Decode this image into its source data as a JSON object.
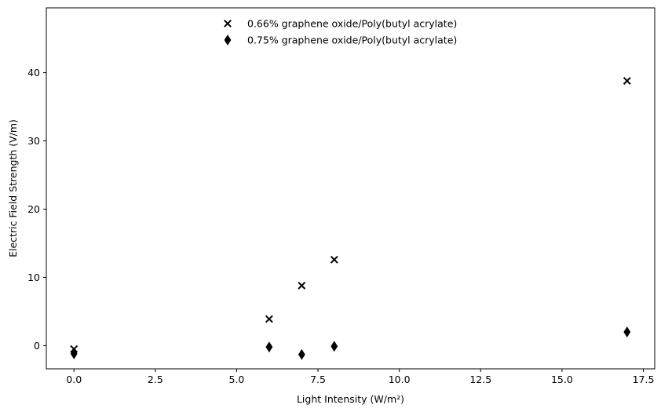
{
  "chart_data": {
    "type": "scatter",
    "title": "",
    "xlabel": "Light Intensity (W/m²)",
    "ylabel": "Electric Field Strength (V/m)",
    "xlim": [
      -0.85,
      17.85
    ],
    "ylim": [
      -3.4,
      49.5
    ],
    "xticks": [
      0.0,
      2.5,
      5.0,
      7.5,
      10.0,
      12.5,
      15.0,
      17.5
    ],
    "xtick_labels": [
      "0.0",
      "2.5",
      "5.0",
      "7.5",
      "10.0",
      "12.5",
      "15.0",
      "17.5"
    ],
    "yticks": [
      0,
      10,
      20,
      30,
      40
    ],
    "ytick_labels": [
      "0",
      "10",
      "20",
      "30",
      "40"
    ],
    "grid": false,
    "legend_position": "top-center",
    "series": [
      {
        "name": "0.66% graphene oxide/Poly(butyl acrylate)",
        "marker": "x",
        "color": "#000000",
        "points": [
          {
            "x": 0,
            "y": -0.5
          },
          {
            "x": 6,
            "y": 3.9
          },
          {
            "x": 7,
            "y": 8.8
          },
          {
            "x": 8,
            "y": 12.6
          },
          {
            "x": 17,
            "y": 38.8
          }
        ]
      },
      {
        "name": "0.75% graphene oxide/Poly(butyl acrylate)",
        "marker": "thin_diamond",
        "color": "#000000",
        "points": [
          {
            "x": 0,
            "y": -1.2
          },
          {
            "x": 6,
            "y": -0.2
          },
          {
            "x": 7,
            "y": -1.3
          },
          {
            "x": 8,
            "y": -0.1
          },
          {
            "x": 17,
            "y": 2.0
          }
        ]
      }
    ]
  }
}
